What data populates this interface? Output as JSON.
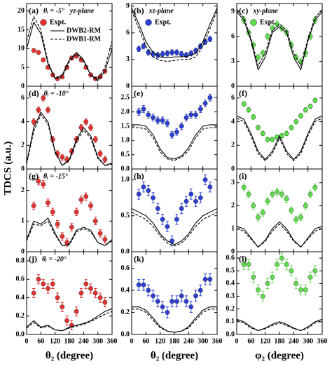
{
  "figure": {
    "ylabel": "TDCS (a.u.)",
    "xlabels": [
      "θ₂ (degree)",
      "θ₂ (degree)",
      "φ₂ (degree)"
    ],
    "x": [
      30,
      50,
      70,
      90,
      110,
      130,
      150,
      170,
      190,
      210,
      230,
      250,
      270,
      290,
      310,
      330
    ],
    "curve_x": [
      0,
      30,
      60,
      90,
      120,
      150,
      180,
      210,
      240,
      270,
      300,
      330,
      360
    ],
    "xlim": [
      0,
      360
    ],
    "xticks": [
      0,
      60,
      120,
      180,
      240,
      300,
      360
    ]
  },
  "chart_data": [
    {
      "type": "combo",
      "label": "(a)",
      "annotations": [
        "θᵢ = -5°",
        "yz-plane"
      ],
      "ylim": [
        0,
        22
      ],
      "yticks": [
        0,
        5,
        10,
        15,
        20
      ],
      "series": [
        {
          "name": "Expt.",
          "kind": "scatter",
          "color": "#e8312e",
          "error": 0.5,
          "values": [
            9.5,
            9,
            7,
            5,
            3,
            2,
            2.5,
            5,
            7.5,
            8,
            7,
            5,
            3,
            2,
            2.5,
            4
          ]
        },
        {
          "name": "DWB2-RM",
          "kind": "line",
          "dash": false,
          "color": "#000000",
          "values": [
            10,
            17,
            14,
            6,
            2,
            3,
            7,
            9,
            7,
            3,
            1.5,
            4,
            10
          ]
        },
        {
          "name": "DWB1-RM",
          "kind": "line",
          "dash": true,
          "color": "#000000",
          "values": [
            12,
            18.5,
            15,
            6.5,
            2,
            2.5,
            6.5,
            8.5,
            6.5,
            3,
            2,
            5,
            12
          ]
        }
      ]
    },
    {
      "type": "combo",
      "label": "(b)",
      "annotations": [
        "xz-plane"
      ],
      "ylim": [
        0,
        9.3
      ],
      "yticks": [
        0,
        3,
        6,
        9
      ],
      "series": [
        {
          "name": "Expt.",
          "kind": "scatter",
          "color": "#2a3fd6",
          "error": 0.3,
          "values": [
            4.2,
            4.5,
            3.8,
            3.6,
            3.5,
            3.6,
            3.7,
            3.8,
            3.8,
            3.6,
            3.5,
            3.7,
            4,
            4.5,
            5,
            5.3
          ]
        },
        {
          "kind": "line",
          "dash": false,
          "color": "#000000",
          "values": [
            8.8,
            7,
            5,
            3.8,
            3.3,
            3.2,
            3.3,
            3.3,
            3.4,
            3.7,
            5,
            7,
            8.8
          ]
        },
        {
          "kind": "line",
          "dash": true,
          "color": "#000000",
          "values": [
            8.5,
            6.5,
            4.5,
            3.3,
            2.9,
            2.8,
            2.9,
            3,
            3,
            3.3,
            4.5,
            6.5,
            8.5
          ]
        }
      ]
    },
    {
      "type": "combo",
      "label": "(c)",
      "annotations": [
        "xy-plane"
      ],
      "ylim": [
        0,
        10
      ],
      "yticks": [
        0,
        3,
        6,
        9
      ],
      "series": [
        {
          "name": "Expt.",
          "kind": "scatter",
          "color": "#5ee04c",
          "error": 0.4,
          "values": [
            8,
            6.5,
            5,
            3.5,
            4,
            6,
            7,
            7.5,
            7,
            6.5,
            5,
            3.5,
            3,
            4,
            6,
            8
          ]
        },
        {
          "kind": "line",
          "dash": false,
          "color": "#000000",
          "values": [
            9,
            8,
            5.5,
            2,
            3.5,
            6.5,
            7.2,
            6.5,
            3.5,
            2,
            5.5,
            8,
            9
          ]
        },
        {
          "kind": "line",
          "dash": true,
          "color": "#000000",
          "values": [
            9.3,
            8.3,
            5.8,
            2.5,
            4,
            6.8,
            7.5,
            6.8,
            4,
            2.5,
            5.8,
            8.3,
            9.3
          ]
        }
      ]
    },
    {
      "type": "combo",
      "label": "(d)",
      "annotations": [
        "θᵢ = -10°"
      ],
      "ylim": [
        0,
        7
      ],
      "yticks": [
        0,
        2,
        4,
        6
      ],
      "series": [
        {
          "kind": "scatter",
          "color": "#e8312e",
          "error": 0.25,
          "values": [
            4,
            5,
            6,
            5,
            2.5,
            1.3,
            1,
            0.8,
            1.5,
            2.5,
            3.5,
            4,
            3.5,
            2.5,
            1.3,
            0.8
          ]
        },
        {
          "kind": "line",
          "dash": false,
          "color": "#000000",
          "values": [
            0.5,
            3.5,
            4.8,
            4,
            1.5,
            0.3,
            0.8,
            2.5,
            3.5,
            2.8,
            1,
            0.3,
            0.5
          ]
        },
        {
          "kind": "line",
          "dash": true,
          "color": "#000000",
          "values": [
            0.4,
            3.2,
            4.6,
            3.8,
            1.4,
            0.3,
            0.7,
            2.3,
            3.3,
            2.6,
            0.9,
            0.3,
            0.4
          ]
        }
      ]
    },
    {
      "type": "combo",
      "label": "(e)",
      "annotations": [],
      "ylim": [
        0,
        2.9
      ],
      "yticks": [
        {
          "value": 0,
          "label": "0.0"
        },
        0.5,
        {
          "value": 1,
          "label": "1.0"
        },
        1.5,
        {
          "value": 2,
          "label": "2.0"
        },
        2.5
      ],
      "series": [
        {
          "kind": "scatter",
          "color": "#2a3fd6",
          "error": 0.12,
          "values": [
            2,
            2.1,
            1.9,
            1.8,
            1.7,
            1.7,
            1.6,
            1.2,
            1.3,
            1.5,
            1.8,
            1.9,
            1.9,
            2.1,
            2.3,
            2.5
          ]
        },
        {
          "kind": "line",
          "dash": false,
          "color": "#000000",
          "values": [
            1.55,
            1.55,
            1.5,
            1.2,
            0.7,
            0.4,
            0.35,
            0.45,
            0.75,
            1.2,
            1.5,
            1.55,
            1.55
          ]
        },
        {
          "kind": "line",
          "dash": true,
          "color": "#000000",
          "values": [
            1.45,
            1.45,
            1.4,
            1.1,
            0.6,
            0.35,
            0.3,
            0.4,
            0.65,
            1.1,
            1.4,
            1.45,
            1.45
          ]
        }
      ]
    },
    {
      "type": "combo",
      "label": "(f)",
      "annotations": [],
      "ylim": [
        0,
        7
      ],
      "yticks": [
        0,
        2,
        4,
        6
      ],
      "series": [
        {
          "kind": "scatter",
          "color": "#5ee04c",
          "error": 0.2,
          "values": [
            5.5,
            5,
            4.4,
            3.5,
            3,
            2.5,
            2.5,
            2.7,
            2.8,
            3,
            3.5,
            4,
            4.5,
            5,
            5.3,
            5.8
          ]
        },
        {
          "kind": "line",
          "dash": false,
          "color": "#000000",
          "values": [
            4.5,
            4.2,
            3,
            1.5,
            0.8,
            1.5,
            2.8,
            1.5,
            0.8,
            1.5,
            3,
            4.2,
            4.5
          ]
        },
        {
          "kind": "line",
          "dash": true,
          "color": "#000000",
          "values": [
            4.3,
            4,
            2.8,
            1.3,
            0.7,
            1.3,
            2.6,
            1.3,
            0.7,
            1.3,
            2.8,
            4,
            4.3
          ]
        }
      ]
    },
    {
      "type": "combo",
      "label": "(g)",
      "annotations": [
        "θᵢ = -15°"
      ],
      "ylim": [
        0,
        2.7
      ],
      "yticks": [
        0,
        1,
        2
      ],
      "series": [
        {
          "kind": "scatter",
          "color": "#e8312e",
          "error": 0.12,
          "values": [
            1.5,
            2.3,
            2.2,
            1.6,
            1.3,
            0.9,
            0.5,
            0.3,
            0.8,
            1.3,
            1.7,
            1.8,
            1.5,
            1,
            0.6,
            0.4
          ]
        },
        {
          "kind": "line",
          "dash": false,
          "color": "#000000",
          "values": [
            0.4,
            1,
            0.9,
            1.1,
            0.6,
            0.2,
            0.25,
            0.7,
            0.8,
            0.7,
            0.3,
            0.2,
            0.4
          ]
        },
        {
          "kind": "line",
          "dash": true,
          "color": "#000000",
          "values": [
            0.35,
            0.9,
            0.85,
            1,
            0.55,
            0.2,
            0.22,
            0.65,
            0.75,
            0.65,
            0.3,
            0.2,
            0.35
          ]
        }
      ]
    },
    {
      "type": "combo",
      "label": "(h)",
      "annotations": [],
      "ylim": [
        0,
        1.15
      ],
      "yticks": [
        {
          "value": 0,
          "label": "0.0"
        },
        0.5,
        {
          "value": 1,
          "label": "1.0"
        }
      ],
      "series": [
        {
          "kind": "scatter",
          "color": "#2a3fd6",
          "error": 0.07,
          "values": [
            0.8,
            0.9,
            0.85,
            0.75,
            0.6,
            0.45,
            0.35,
            0.15,
            0.45,
            0.6,
            0.7,
            0.8,
            0.7,
            0.75,
            1.0,
            0.9
          ]
        },
        {
          "kind": "line",
          "dash": false,
          "color": "#000000",
          "values": [
            0.6,
            0.55,
            0.5,
            0.4,
            0.25,
            0.15,
            0.1,
            0.15,
            0.25,
            0.4,
            0.5,
            0.55,
            0.6
          ]
        },
        {
          "kind": "line",
          "dash": true,
          "color": "#000000",
          "values": [
            0.55,
            0.5,
            0.45,
            0.35,
            0.22,
            0.12,
            0.08,
            0.12,
            0.22,
            0.35,
            0.45,
            0.5,
            0.55
          ]
        }
      ]
    },
    {
      "type": "combo",
      "label": "(i)",
      "annotations": [],
      "ylim": [
        0,
        3.6
      ],
      "yticks": [
        0,
        1,
        2,
        3
      ],
      "series": [
        {
          "kind": "scatter",
          "color": "#5ee04c",
          "error": 0.15,
          "values": [
            2.8,
            2.5,
            2,
            1.5,
            1.7,
            2.2,
            2.5,
            2.6,
            2.5,
            2.3,
            1.8,
            1.4,
            1.5,
            2,
            2.5,
            2.8
          ]
        },
        {
          "kind": "line",
          "dash": false,
          "color": "#000000",
          "values": [
            1.1,
            1,
            0.6,
            0.2,
            0.5,
            1,
            1.3,
            1,
            0.5,
            0.2,
            0.6,
            1,
            1.1
          ]
        },
        {
          "kind": "line",
          "dash": true,
          "color": "#000000",
          "values": [
            1,
            0.9,
            0.55,
            0.2,
            0.45,
            0.9,
            1.2,
            0.9,
            0.45,
            0.2,
            0.55,
            0.9,
            1
          ]
        }
      ]
    },
    {
      "type": "combo",
      "label": "(j)",
      "annotations": [
        "θᵢ = -20°"
      ],
      "ylim": [
        0,
        0.9
      ],
      "yticks": [
        {
          "value": 0,
          "label": "0.0"
        },
        0.2,
        0.4,
        0.6,
        0.8
      ],
      "series": [
        {
          "kind": "scatter",
          "color": "#e8312e",
          "error": 0.05,
          "values": [
            0.45,
            0.6,
            0.55,
            0.5,
            0.55,
            0.4,
            0.3,
            0.15,
            0.1,
            0.25,
            0.45,
            0.55,
            0.5,
            0.45,
            0.4,
            0.35
          ]
        },
        {
          "kind": "line",
          "dash": false,
          "color": "#000000",
          "values": [
            0.08,
            0.15,
            0.08,
            0.1,
            0.05,
            0.04,
            0.08,
            0.1,
            0.12,
            0.15,
            0.2,
            0.25,
            0.28
          ]
        },
        {
          "kind": "line",
          "dash": true,
          "color": "#000000",
          "values": [
            0.07,
            0.13,
            0.07,
            0.09,
            0.05,
            0.04,
            0.07,
            0.09,
            0.11,
            0.14,
            0.18,
            0.22,
            0.25
          ]
        }
      ]
    },
    {
      "type": "combo",
      "label": "(k)",
      "annotations": [],
      "ylim": [
        0,
        0.75
      ],
      "yticks": [
        {
          "value": 0,
          "label": "0.0"
        },
        0.2,
        0.4,
        0.6
      ],
      "series": [
        {
          "kind": "scatter",
          "color": "#2a3fd6",
          "error": 0.05,
          "values": [
            0.45,
            0.45,
            0.4,
            0.35,
            0.3,
            0.25,
            0.2,
            0.3,
            0.3,
            0.35,
            0.3,
            0.25,
            0.35,
            0.4,
            0.5,
            0.5
          ]
        },
        {
          "kind": "line",
          "dash": false,
          "color": "#000000",
          "values": [
            0.25,
            0.25,
            0.22,
            0.15,
            0.07,
            0.03,
            0.02,
            0.03,
            0.07,
            0.15,
            0.22,
            0.25,
            0.25
          ]
        },
        {
          "kind": "line",
          "dash": true,
          "color": "#000000",
          "values": [
            0.23,
            0.23,
            0.2,
            0.13,
            0.06,
            0.03,
            0.02,
            0.03,
            0.06,
            0.13,
            0.2,
            0.23,
            0.23
          ]
        }
      ]
    },
    {
      "type": "combo",
      "label": "(l)",
      "annotations": [],
      "ylim": [
        0,
        0.65
      ],
      "yticks": [
        {
          "value": 0,
          "label": "0.0"
        },
        0.1,
        0.2,
        0.3,
        0.4,
        0.5,
        0.6
      ],
      "series": [
        {
          "kind": "scatter",
          "color": "#5ee04c",
          "error": 0.04,
          "values": [
            0.55,
            0.55,
            0.45,
            0.35,
            0.3,
            0.4,
            0.45,
            0.55,
            0.6,
            0.55,
            0.5,
            0.4,
            0.35,
            0.35,
            0.45,
            0.5
          ]
        },
        {
          "kind": "line",
          "dash": false,
          "color": "#000000",
          "values": [
            0.12,
            0.1,
            0.06,
            0.03,
            0.05,
            0.08,
            0.1,
            0.08,
            0.05,
            0.03,
            0.06,
            0.1,
            0.12
          ]
        },
        {
          "kind": "line",
          "dash": true,
          "color": "#000000",
          "values": [
            0.11,
            0.09,
            0.05,
            0.03,
            0.045,
            0.07,
            0.09,
            0.07,
            0.045,
            0.03,
            0.05,
            0.09,
            0.11
          ]
        }
      ]
    }
  ]
}
